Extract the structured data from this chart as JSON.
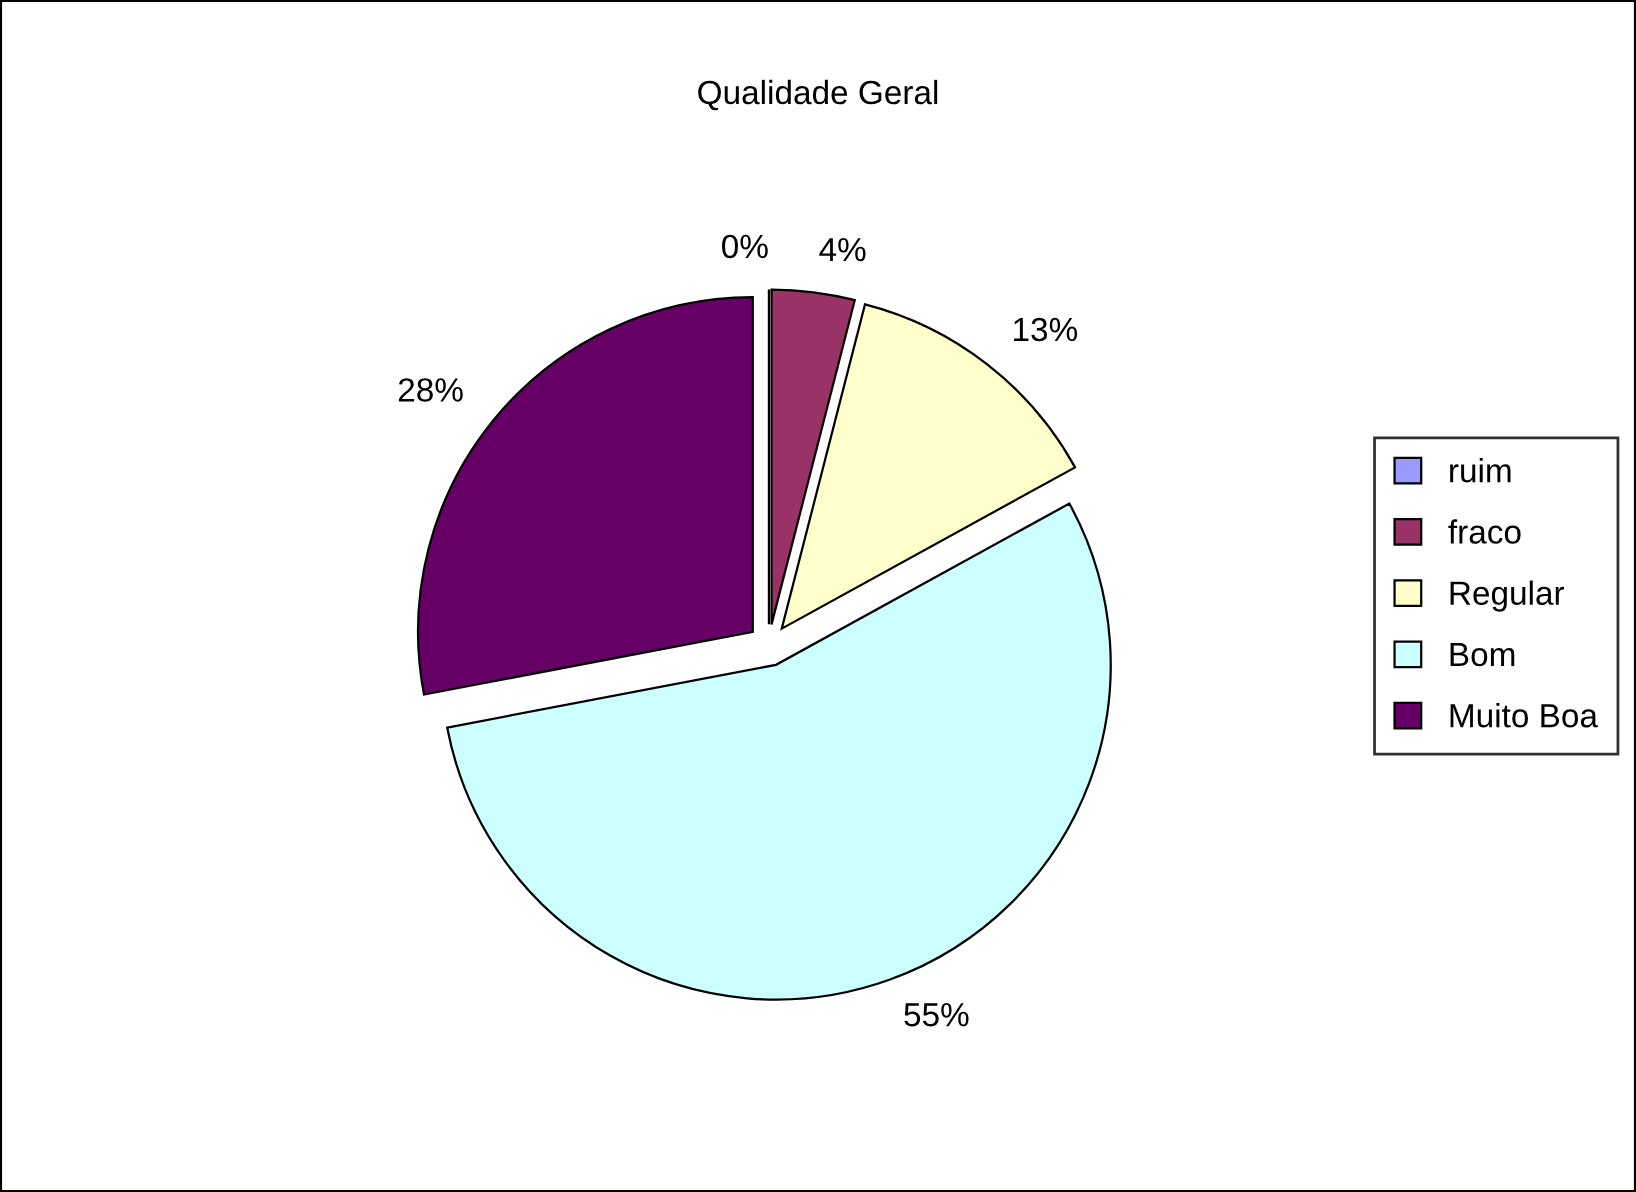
{
  "chart_data": {
    "type": "pie",
    "title": "Qualidade Geral",
    "categories": [
      "ruim",
      "fraco",
      "Regular",
      "Bom",
      "Muito Boa"
    ],
    "values": [
      0,
      4,
      13,
      55,
      28
    ],
    "value_labels": [
      "0%",
      "4%",
      "13%",
      "55%",
      "28%"
    ],
    "colors": [
      "#9999ff",
      "#993366",
      "#ffffcc",
      "#ccffff",
      "#660066"
    ],
    "legend": "right"
  }
}
